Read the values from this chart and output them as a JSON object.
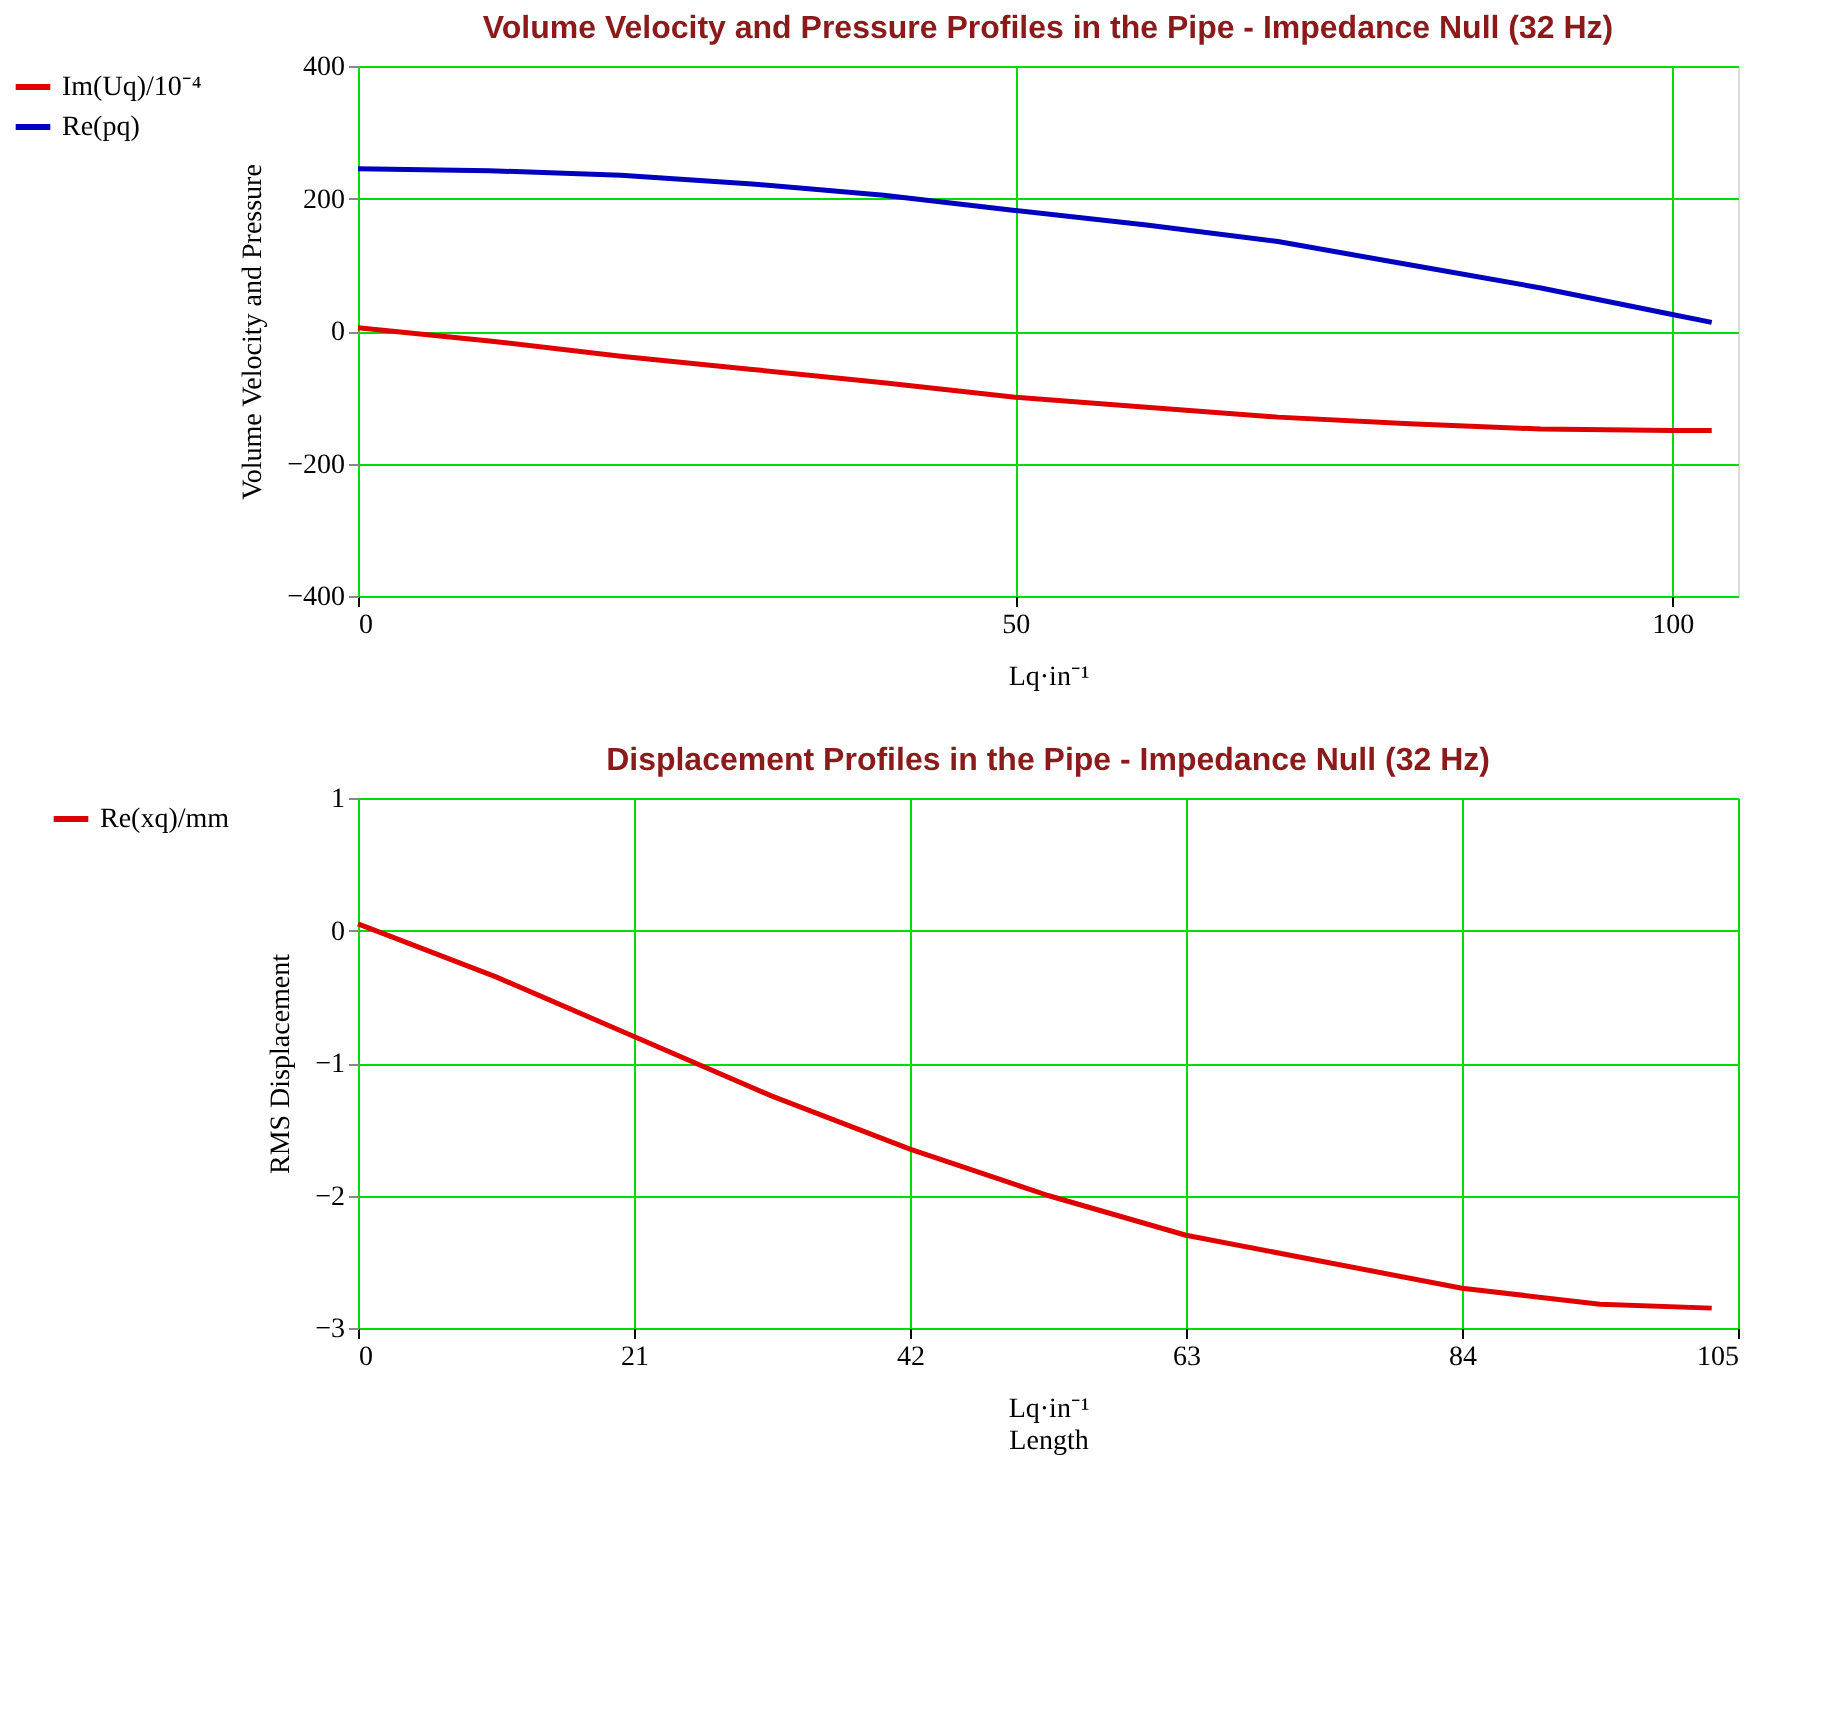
{
  "chart_data": [
    {
      "type": "line",
      "title": "Volume Velocity and Pressure Profiles in the Pipe - Impedance Null (32 Hz)",
      "xlabel": "Lq·in⁻¹",
      "ylabel": "Volume Velocity and Pressure",
      "x": [
        0,
        10,
        20,
        30,
        40,
        50,
        60,
        70,
        80,
        90,
        100,
        103
      ],
      "series": [
        {
          "name": "Im(Uq)/10⁻⁴",
          "color": "#e00000",
          "values": [
            5,
            -15,
            -38,
            -58,
            -78,
            -100,
            -115,
            -130,
            -140,
            -148,
            -150,
            -150
          ]
        },
        {
          "name": "Re(pq)",
          "color": "#0000c0",
          "values": [
            245,
            242,
            235,
            222,
            205,
            182,
            160,
            135,
            100,
            65,
            25,
            13
          ]
        }
      ],
      "xlim": [
        0,
        105
      ],
      "xticks": [
        0,
        50,
        100
      ],
      "ylim": [
        -400,
        400
      ],
      "yticks": [
        -400,
        -200,
        0,
        200,
        400
      ],
      "grid": true,
      "legend": "left"
    },
    {
      "type": "line",
      "title": "Displacement Profiles in the Pipe - Impedance Null (32 Hz)",
      "xlabel": "Lq·in⁻¹\nLength",
      "ylabel": "RMS Displacement",
      "x": [
        0,
        10.5,
        21,
        31.5,
        42,
        52.5,
        63,
        73.5,
        84,
        94.5,
        103
      ],
      "series": [
        {
          "name": "Re(xq)/mm",
          "color": "#e00000",
          "values": [
            0.05,
            -0.35,
            -0.8,
            -1.25,
            -1.65,
            -2.0,
            -2.3,
            -2.5,
            -2.7,
            -2.82,
            -2.85
          ]
        }
      ],
      "xlim": [
        0,
        105
      ],
      "xticks": [
        0,
        21,
        42,
        63,
        84,
        105
      ],
      "ylim": [
        -3,
        1
      ],
      "yticks": [
        -3,
        -2,
        -1,
        0,
        1
      ],
      "grid": true,
      "legend": "left"
    }
  ]
}
